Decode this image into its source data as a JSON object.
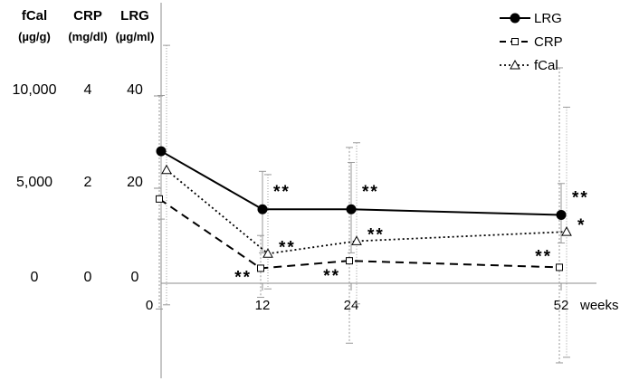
{
  "chart_data": {
    "type": "line",
    "x": [
      0,
      12,
      24,
      52
    ],
    "xticks": [
      "0",
      "12",
      "24",
      "52"
    ],
    "xlabel": "weeks",
    "axes": [
      {
        "name": "fCal",
        "unit": "(µg/g)",
        "ticks": [
          "0",
          "5,000",
          "10,000"
        ],
        "tick_values": [
          0,
          5000,
          10000
        ]
      },
      {
        "name": "CRP",
        "unit": "(mg/dl)",
        "ticks": [
          "0",
          "2",
          "4"
        ],
        "tick_values": [
          0,
          2,
          4
        ]
      },
      {
        "name": "LRG",
        "unit": "(µg/ml)",
        "ticks": [
          "0",
          "20",
          "40"
        ],
        "tick_values": [
          0,
          20,
          40
        ]
      }
    ],
    "series": [
      {
        "name": "LRG",
        "line": "solid",
        "marker": "filled-circle",
        "scale": "LRG",
        "values": [
          28.2,
          15.8,
          15.8,
          14.6
        ],
        "err_low": [
          13.7,
          6.5,
          6.5,
          8.6
        ],
        "err_high": [
          40.1,
          23.9,
          25.8,
          21.3
        ],
        "sig": [
          "",
          "**",
          "**",
          "**"
        ],
        "sig_pos": [
          "",
          "right",
          "right",
          "right"
        ]
      },
      {
        "name": "CRP",
        "line": "dashed",
        "marker": "open-square",
        "scale": "CRP",
        "values": [
          1.8,
          0.32,
          0.48,
          0.34
        ],
        "err_low": [
          -0.55,
          -0.3,
          -1.28,
          -1.7
        ],
        "err_high": [
          4.0,
          1.02,
          2.9,
          4.6
        ],
        "sig": [
          "",
          "**",
          "**",
          "**"
        ],
        "sig_pos": [
          "",
          "left",
          "left",
          "above-left"
        ]
      },
      {
        "name": "fCal",
        "line": "dotted",
        "marker": "open-triangle",
        "scale": "fCal",
        "values": [
          6050,
          1580,
          2250,
          2750
        ],
        "err_low": [
          -1150,
          -300,
          -1100,
          -3950
        ],
        "err_high": [
          12700,
          5800,
          7500,
          9400
        ],
        "sig": [
          "",
          "**",
          "**",
          "*"
        ],
        "sig_pos": [
          "",
          "right",
          "right",
          "right"
        ]
      }
    ],
    "legend": [
      "LRG",
      "CRP",
      "fCal"
    ],
    "legend_position": "top-right",
    "grid": false
  }
}
